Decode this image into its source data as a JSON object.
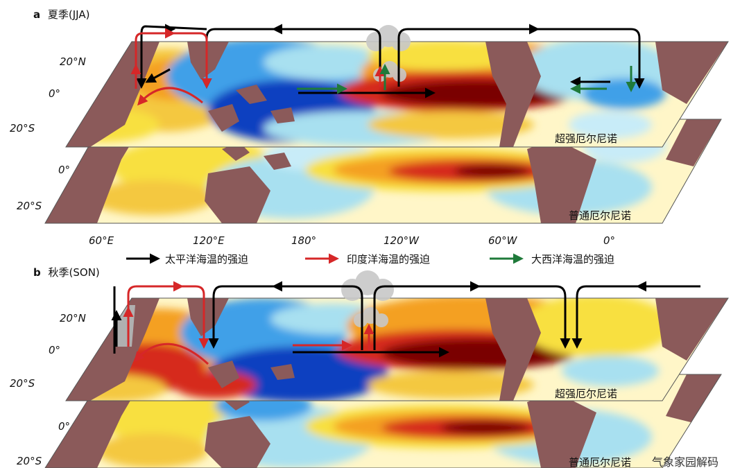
{
  "panel_a": {
    "letter": "a",
    "season": "夏季(JJA)",
    "top_map_label": "超强厄尔尼诺",
    "bottom_map_label": "普通厄尔尼诺",
    "top_lat_labels": [
      "20°N",
      "0°",
      "20°S"
    ],
    "bottom_lat_labels": [
      "0°",
      "20°S"
    ]
  },
  "panel_b": {
    "letter": "b",
    "season": "秋季(SON)",
    "top_map_label": "超强厄尔尼诺",
    "bottom_map_label": "普通厄尔尼诺",
    "top_lat_labels": [
      "20°N",
      "0°",
      "20°S"
    ],
    "bottom_lat_labels": [
      "0°",
      "20°S"
    ]
  },
  "lon_labels": [
    "60°E",
    "120°E",
    "180°",
    "120°W",
    "60°W",
    "0°"
  ],
  "legend": [
    {
      "label": "太平洋海温的强迫",
      "color": "#000000"
    },
    {
      "label": "印度洋海温的强迫",
      "color": "#d62728"
    },
    {
      "label": "大西洋海温的强迫",
      "color": "#1f7a3a"
    }
  ],
  "watermark": "气象家园解码",
  "colors": {
    "land": "#8b5a5a",
    "deep_warm": "#7a0000",
    "warm": "#d62a1a",
    "orange": "#f4a020",
    "yellow": "#f8e040",
    "neutral": "#fff6c8",
    "cool": "#a8e0f0",
    "cold": "#40a0e8",
    "deep_cold": "#1040c0",
    "cloud": "#c8c8c8"
  }
}
